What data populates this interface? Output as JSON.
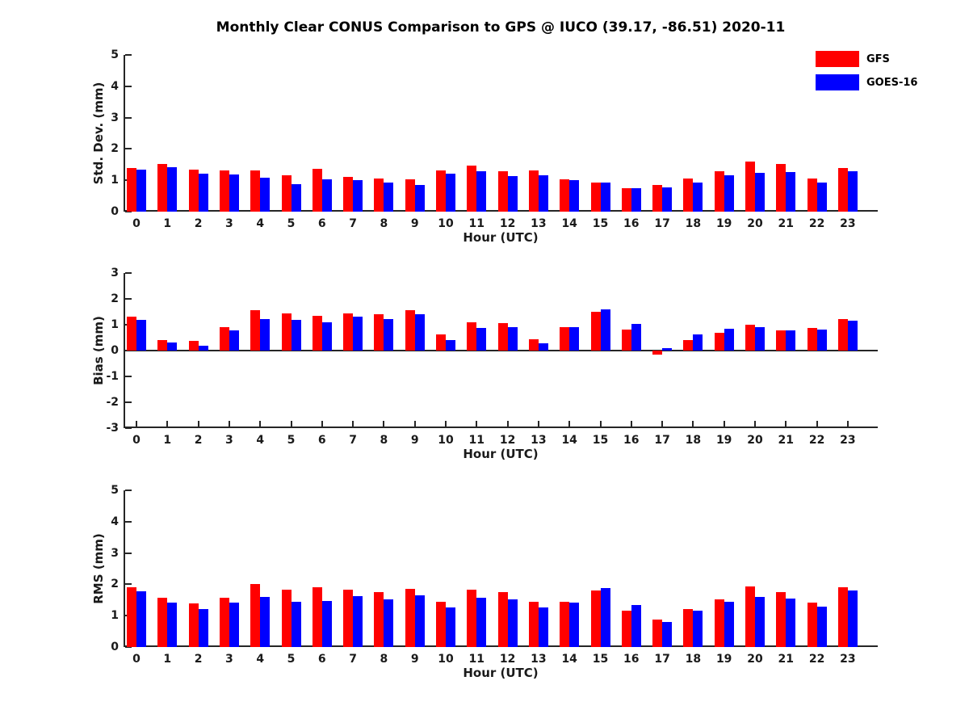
{
  "title": "Monthly Clear CONUS Comparison to GPS @ IUCO (39.17, -86.51) 2020-11",
  "colors": {
    "gfs": "#ff0000",
    "goes16": "#0000ff",
    "axis": "#262626",
    "background": "#ffffff"
  },
  "legend": {
    "items": [
      {
        "label": "GFS",
        "color": "#ff0000"
      },
      {
        "label": "GOES-16",
        "color": "#0000ff"
      }
    ]
  },
  "chart_data": [
    {
      "type": "bar",
      "ylabel": "Std. Dev. (mm)",
      "xlabel": "Hour (UTC)",
      "ylim": [
        0,
        5
      ],
      "yticks": [
        0,
        1,
        2,
        3,
        4,
        5
      ],
      "grid": false,
      "legend_position": "top-right-outside",
      "categories": [
        "0",
        "1",
        "2",
        "3",
        "4",
        "5",
        "6",
        "7",
        "8",
        "9",
        "10",
        "11",
        "12",
        "13",
        "14",
        "15",
        "16",
        "17",
        "18",
        "19",
        "20",
        "21",
        "22",
        "23"
      ],
      "series": [
        {
          "name": "GFS",
          "color": "#ff0000",
          "values": [
            1.4,
            1.52,
            1.33,
            1.31,
            1.31,
            1.16,
            1.36,
            1.11,
            1.05,
            1.02,
            1.32,
            1.47,
            1.28,
            1.32,
            1.03,
            0.93,
            0.74,
            0.84,
            1.05,
            1.28,
            1.6,
            1.52,
            1.06,
            1.39
          ]
        },
        {
          "name": "GOES-16",
          "color": "#0000ff",
          "values": [
            1.35,
            1.41,
            1.21,
            1.18,
            1.08,
            0.88,
            1.02,
            1.0,
            0.94,
            0.84,
            1.2,
            1.29,
            1.13,
            1.16,
            1.0,
            0.92,
            0.74,
            0.78,
            0.94,
            1.15,
            1.24,
            1.27,
            0.94,
            1.3
          ]
        }
      ]
    },
    {
      "type": "bar",
      "ylabel": "Bias (mm)",
      "xlabel": "Hour (UTC)",
      "ylim": [
        -3,
        3
      ],
      "yticks": [
        -3,
        -2,
        -1,
        0,
        1,
        2,
        3
      ],
      "grid": false,
      "categories": [
        "0",
        "1",
        "2",
        "3",
        "4",
        "5",
        "6",
        "7",
        "8",
        "9",
        "10",
        "11",
        "12",
        "13",
        "14",
        "15",
        "16",
        "17",
        "18",
        "19",
        "20",
        "21",
        "22",
        "23"
      ],
      "series": [
        {
          "name": "GFS",
          "color": "#ff0000",
          "values": [
            1.3,
            0.42,
            0.37,
            0.92,
            1.55,
            1.43,
            1.35,
            1.45,
            1.4,
            1.55,
            0.62,
            1.1,
            1.05,
            0.45,
            0.92,
            1.5,
            0.82,
            -0.15,
            0.4,
            0.7,
            1.0,
            0.78,
            0.88,
            1.22
          ]
        },
        {
          "name": "GOES-16",
          "color": "#0000ff",
          "values": [
            1.2,
            0.32,
            0.2,
            0.77,
            1.22,
            1.18,
            1.1,
            1.32,
            1.22,
            1.42,
            0.42,
            0.88,
            0.92,
            0.28,
            0.92,
            1.6,
            1.03,
            0.08,
            0.62,
            0.83,
            0.92,
            0.78,
            0.8,
            1.17
          ]
        }
      ]
    },
    {
      "type": "bar",
      "ylabel": "RMS (mm)",
      "xlabel": "Hour (UTC)",
      "ylim": [
        0,
        5
      ],
      "yticks": [
        0,
        1,
        2,
        3,
        4,
        5
      ],
      "grid": false,
      "categories": [
        "0",
        "1",
        "2",
        "3",
        "4",
        "5",
        "6",
        "7",
        "8",
        "9",
        "10",
        "11",
        "12",
        "13",
        "14",
        "15",
        "16",
        "17",
        "18",
        "19",
        "20",
        "21",
        "22",
        "23"
      ],
      "series": [
        {
          "name": "GFS",
          "color": "#ff0000",
          "values": [
            1.92,
            1.57,
            1.38,
            1.58,
            2.0,
            1.83,
            1.9,
            1.83,
            1.75,
            1.85,
            1.45,
            1.83,
            1.74,
            1.44,
            1.44,
            1.8,
            1.16,
            0.87,
            1.2,
            1.52,
            1.94,
            1.76,
            1.42,
            1.9
          ]
        },
        {
          "name": "GOES-16",
          "color": "#0000ff",
          "values": [
            1.79,
            1.43,
            1.22,
            1.41,
            1.6,
            1.45,
            1.48,
            1.62,
            1.52,
            1.65,
            1.27,
            1.56,
            1.52,
            1.27,
            1.42,
            1.88,
            1.33,
            0.8,
            1.17,
            1.44,
            1.6,
            1.55,
            1.3,
            1.8
          ]
        }
      ]
    }
  ]
}
